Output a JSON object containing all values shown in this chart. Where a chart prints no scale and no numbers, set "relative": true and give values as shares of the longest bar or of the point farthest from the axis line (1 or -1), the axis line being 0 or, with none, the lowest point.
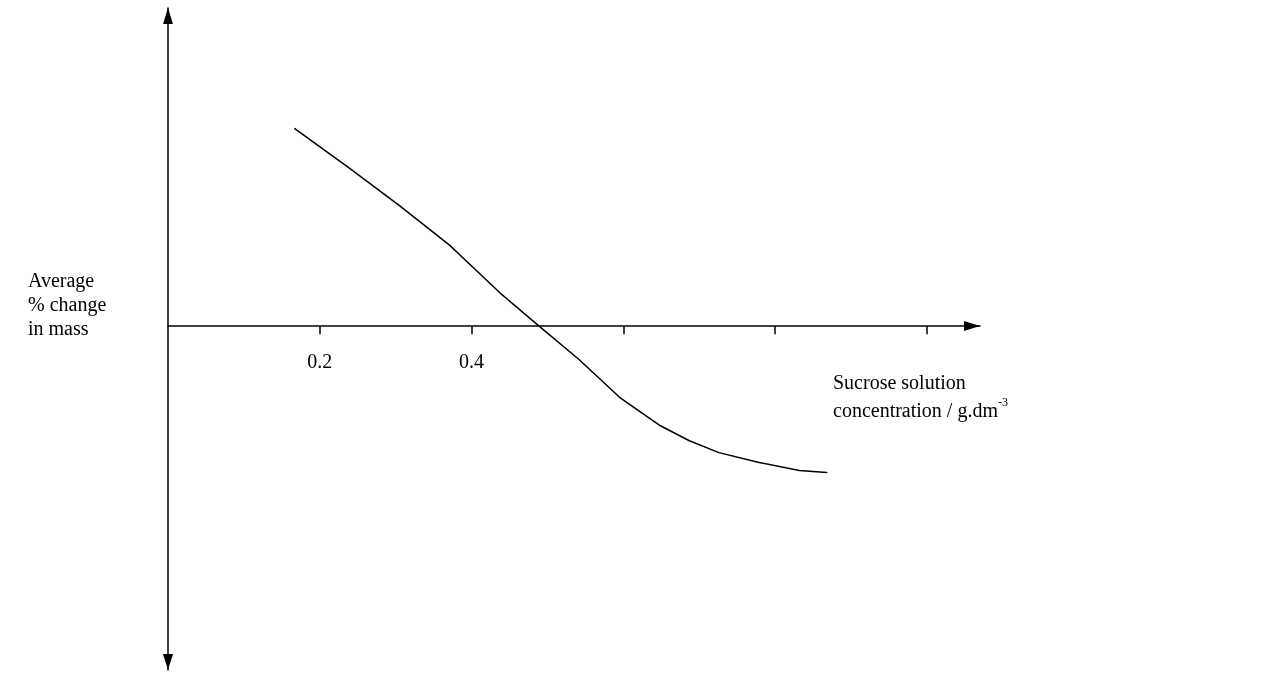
{
  "chart_data": {
    "type": "line",
    "relative": true,
    "xlabel": "Sucrose solution\nconcentration / g.dm$^{-3}$",
    "ylabel": "Average\n% change\nin mass",
    "xlim": [
      0,
      1.07
    ],
    "xticks": [
      {
        "value": 0.2,
        "label": "0.2"
      },
      {
        "value": 0.4,
        "label": "0.4"
      },
      {
        "value": 0.6,
        "label": null
      },
      {
        "value": 0.8,
        "label": null
      },
      {
        "value": 1.0,
        "label": null
      }
    ],
    "series": [
      {
        "color": "#000000",
        "x": [
          0.167,
          0.239,
          0.305,
          0.371,
          0.437,
          0.489,
          0.542,
          0.595,
          0.647,
          0.687,
          0.726,
          0.779,
          0.832,
          0.868
        ],
        "values": [
          1.0,
          0.8,
          0.61,
          0.41,
          0.17,
          0,
          -0.17,
          -0.36,
          -0.5,
          -0.58,
          -0.64,
          -0.69,
          -0.73,
          -0.74
        ]
      }
    ],
    "grid": false,
    "marker": "none",
    "line_style": "solid"
  }
}
